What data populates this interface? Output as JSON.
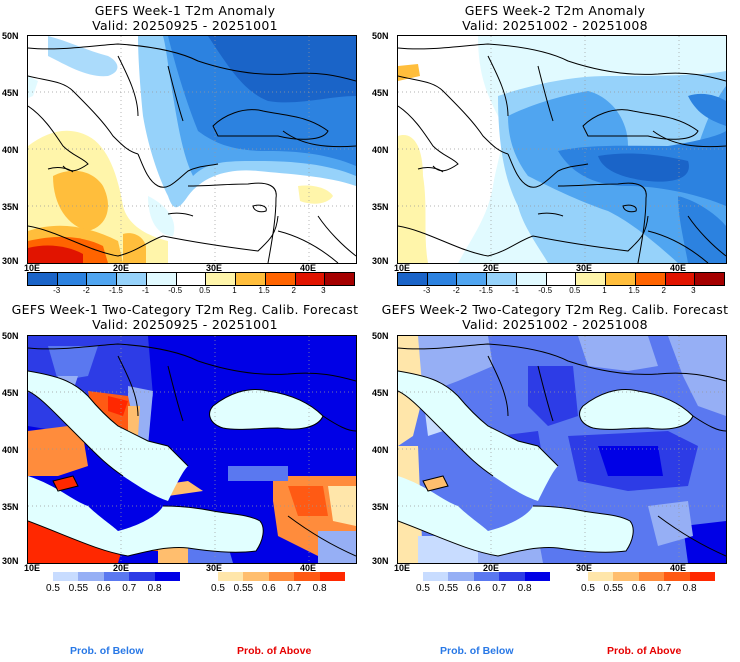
{
  "panels": [
    {
      "id": "week1-anomaly",
      "title": "GEFS Week-1 T2m Anomaly",
      "valid": "Valid: 20250925 - 20251001",
      "type": "anomaly"
    },
    {
      "id": "week2-anomaly",
      "title": "GEFS Week-2 T2m Anomaly",
      "valid": "Valid: 20251002 - 20251008",
      "type": "anomaly"
    },
    {
      "id": "week1-twocat",
      "title": "GEFS Week-1 Two-Category T2m Reg. Calib. Forecast",
      "valid": "Valid: 20250925 - 20251001",
      "type": "probability"
    },
    {
      "id": "week2-twocat",
      "title": "GEFS Week-2 Two-Category T2m Reg. Calib. Forecast",
      "valid": "Valid: 20251002 - 20251008",
      "type": "probability"
    }
  ],
  "axes": {
    "lat_labels": [
      "50N",
      "45N",
      "40N",
      "35N",
      "30N"
    ],
    "lon_labels": [
      "10E",
      "20E",
      "30E",
      "40E"
    ],
    "lat_range": [
      30,
      50
    ],
    "lon_range": [
      10,
      45
    ]
  },
  "anomaly_colorbar": {
    "colors": [
      "#1a64c8",
      "#2c82e0",
      "#50a5f0",
      "#96d2fa",
      "#e1faff",
      "#ffffff",
      "#fff5aa",
      "#ffbe3c",
      "#ff6400",
      "#e11400",
      "#a50000"
    ],
    "labels": [
      "-3",
      "-2",
      "-1.5",
      "-1",
      "-0.5",
      "0.5",
      "1",
      "1.5",
      "2",
      "3"
    ]
  },
  "prob_below_colorbar": {
    "colors": [
      "#c8dcff",
      "#96aff5",
      "#5a78f0",
      "#2d3ce6",
      "#0000e6"
    ],
    "labels": [
      "0.5",
      "0.55",
      "0.6",
      "0.7",
      "0.8"
    ],
    "caption": "Prob. of Below",
    "caption_color": "#2878e6"
  },
  "prob_above_colorbar": {
    "colors": [
      "#ffe6aa",
      "#ffbe6e",
      "#ff8c3c",
      "#ff5a14",
      "#ff2800"
    ],
    "labels": [
      "0.5",
      "0.55",
      "0.6",
      "0.7",
      "0.8"
    ],
    "caption": "Prob. of Above",
    "caption_color": "#e60000"
  },
  "sea_color": "#e1ffff"
}
